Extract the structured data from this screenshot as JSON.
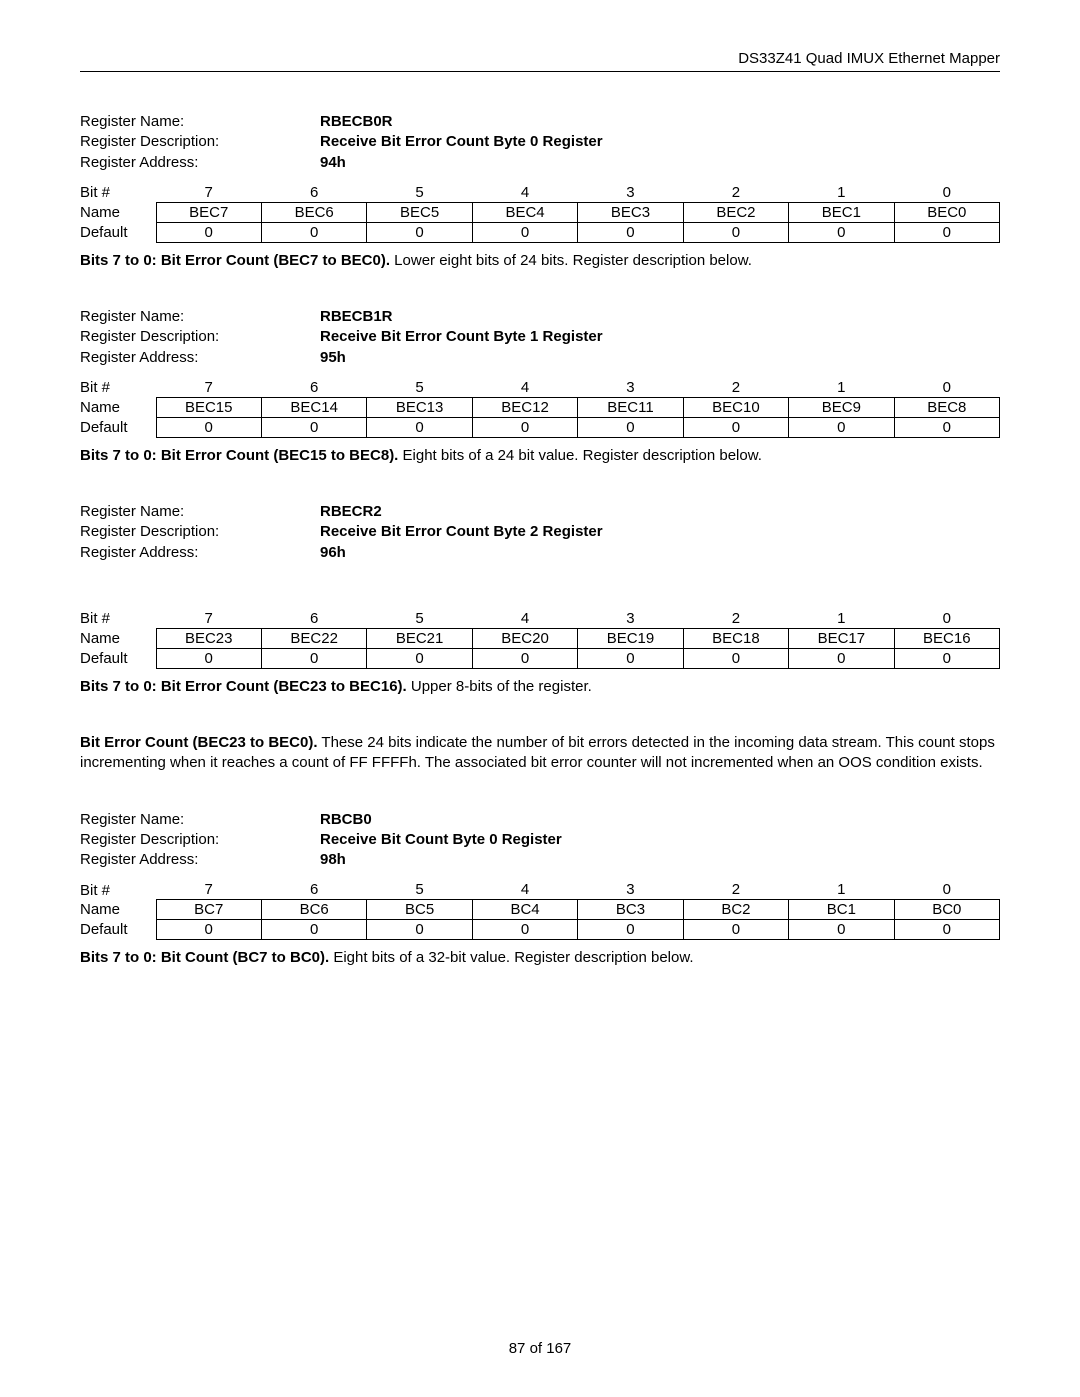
{
  "header": {
    "title": "DS33Z41 Quad IMUX Ethernet Mapper"
  },
  "labels": {
    "registerName": "Register Name:",
    "registerDescription": "Register Description:",
    "registerAddress": "Register Address:",
    "bitNum": "Bit #",
    "name": "Name",
    "default": "Default"
  },
  "registers": [
    {
      "name": "RBECB0R",
      "description": "Receive Bit Error Count Byte 0 Register",
      "address": "94h",
      "bits": [
        "7",
        "6",
        "5",
        "4",
        "3",
        "2",
        "1",
        "0"
      ],
      "names": [
        "BEC7",
        "BEC6",
        "BEC5",
        "BEC4",
        "BEC3",
        "BEC2",
        "BEC1",
        "BEC0"
      ],
      "defaults": [
        "0",
        "0",
        "0",
        "0",
        "0",
        "0",
        "0",
        "0"
      ],
      "desc_lead": "Bits 7 to 0: Bit Error Count (BEC7 to BEC0).",
      "desc_rest": " Lower eight bits of 24 bits. Register description below."
    },
    {
      "name": "RBECB1R",
      "description": "Receive Bit Error Count Byte 1 Register",
      "address": "95h",
      "bits": [
        "7",
        "6",
        "5",
        "4",
        "3",
        "2",
        "1",
        "0"
      ],
      "names": [
        "BEC15",
        "BEC14",
        "BEC13",
        "BEC12",
        "BEC11",
        "BEC10",
        "BEC9",
        "BEC8"
      ],
      "defaults": [
        "0",
        "0",
        "0",
        "0",
        "0",
        "0",
        "0",
        "0"
      ],
      "desc_lead": "Bits 7 to 0: Bit Error Count (BEC15 to BEC8).",
      "desc_rest": " Eight bits of a 24 bit value. Register description below."
    },
    {
      "name": "RBECR2",
      "description": "Receive Bit Error Count Byte 2 Register",
      "address": "96h",
      "extra_gap": true,
      "bits": [
        "7",
        "6",
        "5",
        "4",
        "3",
        "2",
        "1",
        "0"
      ],
      "names": [
        "BEC23",
        "BEC22",
        "BEC21",
        "BEC20",
        "BEC19",
        "BEC18",
        "BEC17",
        "BEC16"
      ],
      "defaults": [
        "0",
        "0",
        "0",
        "0",
        "0",
        "0",
        "0",
        "0"
      ],
      "desc_lead": "Bits 7 to 0: Bit Error Count (BEC23 to BEC16).",
      "desc_rest": " Upper 8-bits of the register.",
      "extra_lead": "Bit Error Count (BEC23 to BEC0).",
      "extra_rest": " These 24 bits indicate the number of bit errors detected in the incoming data stream. This count stops incrementing when it reaches a count of FF FFFFh. The associated bit error counter will not incremented when an OOS condition exists."
    },
    {
      "name": "RBCB0",
      "description": "Receive Bit Count Byte 0 Register",
      "address": "98h",
      "bits": [
        "7",
        "6",
        "5",
        "4",
        "3",
        "2",
        "1",
        "0"
      ],
      "names": [
        "BC7",
        "BC6",
        "BC5",
        "BC4",
        "BC3",
        "BC2",
        "BC1",
        "BC0"
      ],
      "defaults": [
        "0",
        "0",
        "0",
        "0",
        "0",
        "0",
        "0",
        "0"
      ],
      "desc_lead": "Bits 7 to 0: Bit Count (BC7 to BC0).",
      "desc_rest": " Eight bits of a 32-bit value. Register description below."
    }
  ],
  "footer": {
    "pageNum": "87 of 167"
  }
}
